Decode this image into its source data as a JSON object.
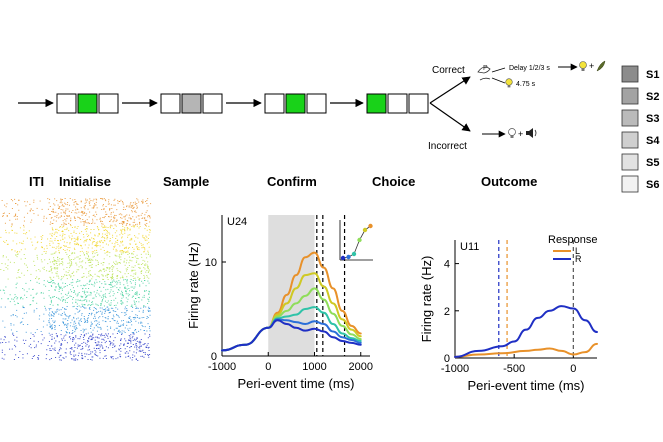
{
  "stages": {
    "iti": "ITI",
    "initialise": "Initialise",
    "sample": "Sample",
    "confirm": "Confirm",
    "choice": "Choice",
    "outcome": "Outcome"
  },
  "branches": {
    "correct": "Correct",
    "incorrect": "Incorrect",
    "delay": "Delay 1/2/3 s",
    "time": "4.75 s"
  },
  "legend_stimuli": [
    {
      "label": "S1",
      "color": "#8c8c8c"
    },
    {
      "label": "S2",
      "color": "#a3a3a3"
    },
    {
      "label": "S3",
      "color": "#bababa"
    },
    {
      "label": "S4",
      "color": "#cfcfcf"
    },
    {
      "label": "S5",
      "color": "#e2e2e2"
    },
    {
      "label": "S6",
      "color": "#f2f2f2"
    }
  ],
  "colors": {
    "green": "#19d219",
    "grey_box": "#b5b5b5",
    "orange": "#e8912a",
    "blue": "#1f2fc4",
    "shade": "#dedede"
  },
  "chart_data": [
    {
      "type": "line",
      "panel_label": "U24",
      "xlabel": "Peri-event time (ms)",
      "ylabel": "Firing rate (Hz)",
      "xlim": [
        -1000,
        2200
      ],
      "ylim": [
        0,
        15
      ],
      "xticks": [
        "-1000",
        "0",
        "1000",
        "2000"
      ],
      "yticks": [
        "0",
        "10"
      ],
      "shaded_region": [
        0,
        1000
      ],
      "event_lines": [
        1050,
        1180,
        1650
      ],
      "series": [
        {
          "color": "#e8912a",
          "x": [
            -1000,
            -500,
            0,
            200,
            400,
            600,
            800,
            1000,
            1200,
            1400,
            1600,
            1800,
            2000
          ],
          "y": [
            0.6,
            1.2,
            3.0,
            4.6,
            6.5,
            8.6,
            10.5,
            11.0,
            9.4,
            7.2,
            4.8,
            3.2,
            2.4
          ]
        },
        {
          "color": "#cfc924",
          "x": [
            -1000,
            -500,
            0,
            200,
            400,
            600,
            800,
            1000,
            1200,
            1400,
            1600,
            1800,
            2000
          ],
          "y": [
            0.6,
            1.2,
            3.0,
            4.4,
            5.6,
            7.2,
            8.6,
            8.8,
            7.4,
            5.6,
            3.9,
            2.8,
            2.1
          ]
        },
        {
          "color": "#8fdd5a",
          "x": [
            -1000,
            -500,
            0,
            200,
            400,
            600,
            800,
            1000,
            1200,
            1400,
            1600,
            1800,
            2000
          ],
          "y": [
            0.6,
            1.2,
            3.0,
            4.2,
            4.8,
            5.6,
            6.4,
            7.2,
            6.0,
            4.5,
            3.2,
            2.3,
            1.8
          ]
        },
        {
          "color": "#2fc3a8",
          "x": [
            -1000,
            -500,
            0,
            200,
            400,
            600,
            800,
            1000,
            1200,
            1400,
            1600,
            1800,
            2000
          ],
          "y": [
            0.6,
            1.2,
            3.0,
            4.0,
            4.2,
            4.4,
            5.0,
            5.2,
            4.6,
            3.4,
            2.4,
            1.9,
            1.6
          ]
        },
        {
          "color": "#2b6fd8",
          "x": [
            -1000,
            -500,
            0,
            200,
            400,
            600,
            800,
            1000,
            1200,
            1400,
            1600,
            1800,
            2000
          ],
          "y": [
            0.6,
            1.2,
            3.0,
            3.9,
            3.8,
            3.6,
            3.4,
            3.7,
            3.4,
            2.6,
            2.0,
            1.7,
            1.4
          ]
        },
        {
          "color": "#1f2fc4",
          "x": [
            -1000,
            -500,
            0,
            200,
            400,
            600,
            800,
            1000,
            1200,
            1400,
            1600,
            1800,
            2000
          ],
          "y": [
            0.6,
            1.2,
            3.0,
            3.8,
            3.4,
            3.0,
            2.7,
            2.9,
            2.6,
            2.0,
            1.6,
            1.4,
            1.2
          ]
        }
      ]
    },
    {
      "type": "line",
      "panel_label": "U11",
      "xlabel": "Peri-event time (ms)",
      "ylabel": "Firing rate (Hz)",
      "xlim": [
        -1000,
        200
      ],
      "ylim": [
        0,
        5
      ],
      "xticks": [
        "-1000",
        "-500",
        "0"
      ],
      "yticks": [
        "0",
        "2",
        "4"
      ],
      "event_lines": [
        -630,
        -560,
        0
      ],
      "annotation": "Response",
      "series": [
        {
          "name": "L",
          "color": "#e8912a",
          "x": [
            -1000,
            -800,
            -600,
            -400,
            -300,
            -200,
            -100,
            0,
            100,
            200
          ],
          "y": [
            0.05,
            0.15,
            0.2,
            0.3,
            0.35,
            0.4,
            0.3,
            0.15,
            0.25,
            0.6
          ]
        },
        {
          "name": "R",
          "color": "#1f2fc4",
          "x": [
            -1000,
            -800,
            -600,
            -500,
            -400,
            -300,
            -200,
            -100,
            0,
            100,
            200
          ],
          "y": [
            0.05,
            0.3,
            0.5,
            0.7,
            1.2,
            1.7,
            2.0,
            2.2,
            2.1,
            1.6,
            1.1
          ]
        }
      ]
    }
  ]
}
